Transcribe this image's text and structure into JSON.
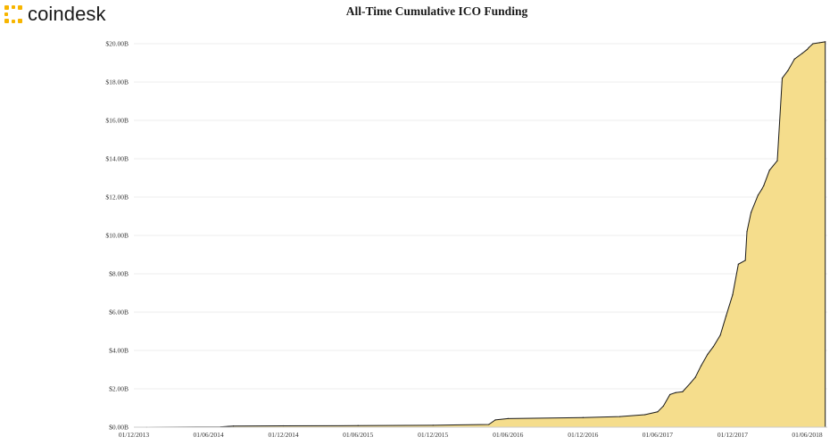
{
  "brand": {
    "name": "coindesk",
    "icon": "coindesk-logo-icon"
  },
  "colors": {
    "area_fill": "#f5dd8c",
    "line": "#1a1a1a",
    "brand_accent": "#f7b500",
    "grid": "#eeeeee"
  },
  "chart_data": {
    "type": "area",
    "title": "All-Time Cumulative ICO Funding",
    "xlabel": "",
    "ylabel": "",
    "x_is_date": true,
    "xlim": [
      "2013-12-01",
      "2018-07-20"
    ],
    "ylim": [
      0,
      20
    ],
    "y_unit": "billion USD",
    "grid": "horizontal",
    "legend": "none",
    "x_ticks": [
      {
        "date": "2013-12-01",
        "label": "01/12/2013"
      },
      {
        "date": "2014-06-01",
        "label": "01/06/2014"
      },
      {
        "date": "2014-12-01",
        "label": "01/12/2014"
      },
      {
        "date": "2015-06-01",
        "label": "01/06/2015"
      },
      {
        "date": "2015-12-01",
        "label": "01/12/2015"
      },
      {
        "date": "2016-06-01",
        "label": "01/06/2016"
      },
      {
        "date": "2016-12-01",
        "label": "01/12/2016"
      },
      {
        "date": "2017-06-01",
        "label": "01/06/2017"
      },
      {
        "date": "2017-12-01",
        "label": "01/12/2017"
      },
      {
        "date": "2018-06-01",
        "label": "01/06/2018"
      }
    ],
    "y_ticks": [
      {
        "value": 0,
        "label": "$0.00B"
      },
      {
        "value": 2,
        "label": "$2.00B"
      },
      {
        "value": 4,
        "label": "$4.00B"
      },
      {
        "value": 6,
        "label": "$6.00B"
      },
      {
        "value": 8,
        "label": "$8.00B"
      },
      {
        "value": 10,
        "label": "$10.00B"
      },
      {
        "value": 12,
        "label": "$12.00B"
      },
      {
        "value": 14,
        "label": "$14.00B"
      },
      {
        "value": 16,
        "label": "$16.00B"
      },
      {
        "value": 18,
        "label": "$18.00B"
      },
      {
        "value": 20,
        "label": "$20.00B"
      }
    ],
    "series": [
      {
        "x": [
          "2014-01-01",
          "2014-07-01",
          "2014-08-01",
          "2014-12-01",
          "2015-06-01",
          "2015-12-01",
          "2016-04-15",
          "2016-05-01",
          "2016-06-01",
          "2016-12-01",
          "2017-03-01",
          "2017-05-01",
          "2017-06-01",
          "2017-06-15",
          "2017-07-01",
          "2017-07-15",
          "2017-08-01",
          "2017-08-20",
          "2017-09-01",
          "2017-09-15",
          "2017-10-01",
          "2017-10-15",
          "2017-11-01",
          "2017-11-15",
          "2017-12-01",
          "2017-12-15",
          "2018-01-01",
          "2018-01-05",
          "2018-01-15",
          "2018-02-01",
          "2018-02-10",
          "2018-02-15",
          "2018-03-01",
          "2018-03-20",
          "2018-04-01",
          "2018-04-15",
          "2018-05-01",
          "2018-05-20",
          "2018-06-01",
          "2018-06-05",
          "2018-06-15",
          "2018-07-01",
          "2018-07-15"
        ],
        "y": [
          0,
          0.02,
          0.06,
          0.07,
          0.08,
          0.1,
          0.14,
          0.38,
          0.45,
          0.5,
          0.55,
          0.65,
          0.8,
          1.1,
          1.7,
          1.8,
          1.85,
          2.3,
          2.6,
          3.2,
          3.8,
          4.2,
          4.8,
          5.8,
          6.9,
          8.5,
          8.7,
          10.2,
          11.2,
          12.1,
          12.4,
          12.6,
          13.4,
          13.9,
          18.2,
          18.6,
          19.2,
          19.5,
          19.7,
          19.8,
          20.0,
          20.05,
          20.1
        ]
      }
    ]
  }
}
